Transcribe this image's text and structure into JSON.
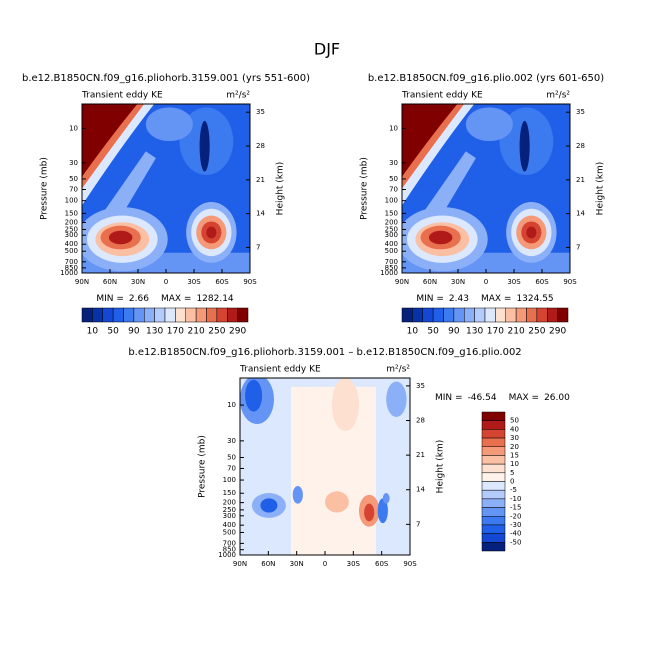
{
  "title": "DJF",
  "chart_data": [
    {
      "type": "contour",
      "title": "b.e12.B1850CN.f09_g16.pliohorb.3159.001 (yrs 551-600)",
      "subtitle": "Transient eddy KE",
      "units": "m²/s²",
      "ylabel": "Pressure (mb)",
      "y2label": "Height (km)",
      "categories": [
        "90N",
        "60N",
        "30N",
        "0",
        "30S",
        "60S",
        "90S"
      ],
      "log_y": true,
      "ylim": [
        1000,
        4.6
      ],
      "yticks": [
        10,
        30,
        50,
        70,
        100,
        150,
        200,
        250,
        300,
        400,
        500,
        700,
        850,
        1000
      ],
      "y2lim": [
        1.7,
        36.7
      ],
      "y2ticks": [
        7,
        14,
        21,
        28,
        35
      ],
      "min_label": "MIN =",
      "min": 2.66,
      "max_label": "MAX =",
      "max": 1282.14,
      "colorbar": {
        "orientation": "horizontal",
        "ticks": [
          10,
          50,
          90,
          130,
          170,
          210,
          250,
          290
        ],
        "colors": [
          "#06217c",
          "#0832a8",
          "#1448d4",
          "#2060e8",
          "#3c7af0",
          "#6494f4",
          "#8cb0f8",
          "#b4ccfb",
          "#dce8fd",
          "#fde0d0",
          "#fbbfa4",
          "#f59a78",
          "#e8704f",
          "#d44430",
          "#b01a18",
          "#800000"
        ]
      }
    },
    {
      "type": "contour",
      "title": "b.e12.B1850CN.f09_g16.plio.002 (yrs 601-650)",
      "subtitle": "Transient eddy KE",
      "units": "m²/s²",
      "ylabel": "Pressure (mb)",
      "y2label": "Height (km)",
      "categories": [
        "90N",
        "60N",
        "30N",
        "0",
        "30S",
        "60S",
        "90S"
      ],
      "log_y": true,
      "ylim": [
        1000,
        4.6
      ],
      "yticks": [
        10,
        30,
        50,
        70,
        100,
        150,
        200,
        250,
        300,
        400,
        500,
        700,
        850,
        1000
      ],
      "y2lim": [
        1.7,
        36.7
      ],
      "y2ticks": [
        7,
        14,
        21,
        28,
        35
      ],
      "min_label": "MIN =",
      "min": 2.43,
      "max_label": "MAX =",
      "max": 1324.55,
      "colorbar": {
        "orientation": "horizontal",
        "ticks": [
          10,
          50,
          90,
          130,
          170,
          210,
          250,
          290
        ],
        "colors": [
          "#06217c",
          "#0832a8",
          "#1448d4",
          "#2060e8",
          "#3c7af0",
          "#6494f4",
          "#8cb0f8",
          "#b4ccfb",
          "#dce8fd",
          "#fde0d0",
          "#fbbfa4",
          "#f59a78",
          "#e8704f",
          "#d44430",
          "#b01a18",
          "#800000"
        ]
      }
    },
    {
      "type": "contour",
      "title": "b.e12.B1850CN.f09_g16.pliohorb.3159.001 – b.e12.B1850CN.f09_g16.plio.002",
      "subtitle": "Transient eddy KE",
      "units": "m²/s²",
      "ylabel": "Pressure (mb)",
      "y2label": "Height (km)",
      "categories": [
        "90N",
        "60N",
        "30N",
        "0",
        "30S",
        "60S",
        "90S"
      ],
      "log_y": true,
      "ylim": [
        1000,
        4.35
      ],
      "yticks": [
        10,
        30,
        50,
        70,
        100,
        150,
        200,
        250,
        300,
        400,
        500,
        700,
        850,
        1000
      ],
      "y2lim": [
        0.8,
        36.6
      ],
      "y2ticks": [
        7,
        14,
        21,
        28,
        35
      ],
      "min_label": "MIN =",
      "min": -46.54,
      "max_label": "MAX =",
      "max": {
        "value": 26,
        "label": "26.00"
      },
      "colorbar": {
        "orientation": "vertical",
        "ticks": [
          50,
          40,
          30,
          20,
          15,
          10,
          5,
          0,
          -5,
          -10,
          -15,
          -20,
          -30,
          -40,
          -50
        ],
        "colors": [
          "#800000",
          "#b01a18",
          "#d44430",
          "#e8704f",
          "#f59a78",
          "#fbbfa4",
          "#fde0d0",
          "#fff2ea",
          "#dce8fd",
          "#b4ccfb",
          "#8cb0f8",
          "#6494f4",
          "#3c7af0",
          "#2060e8",
          "#1448d4",
          "#06217c"
        ]
      }
    }
  ]
}
